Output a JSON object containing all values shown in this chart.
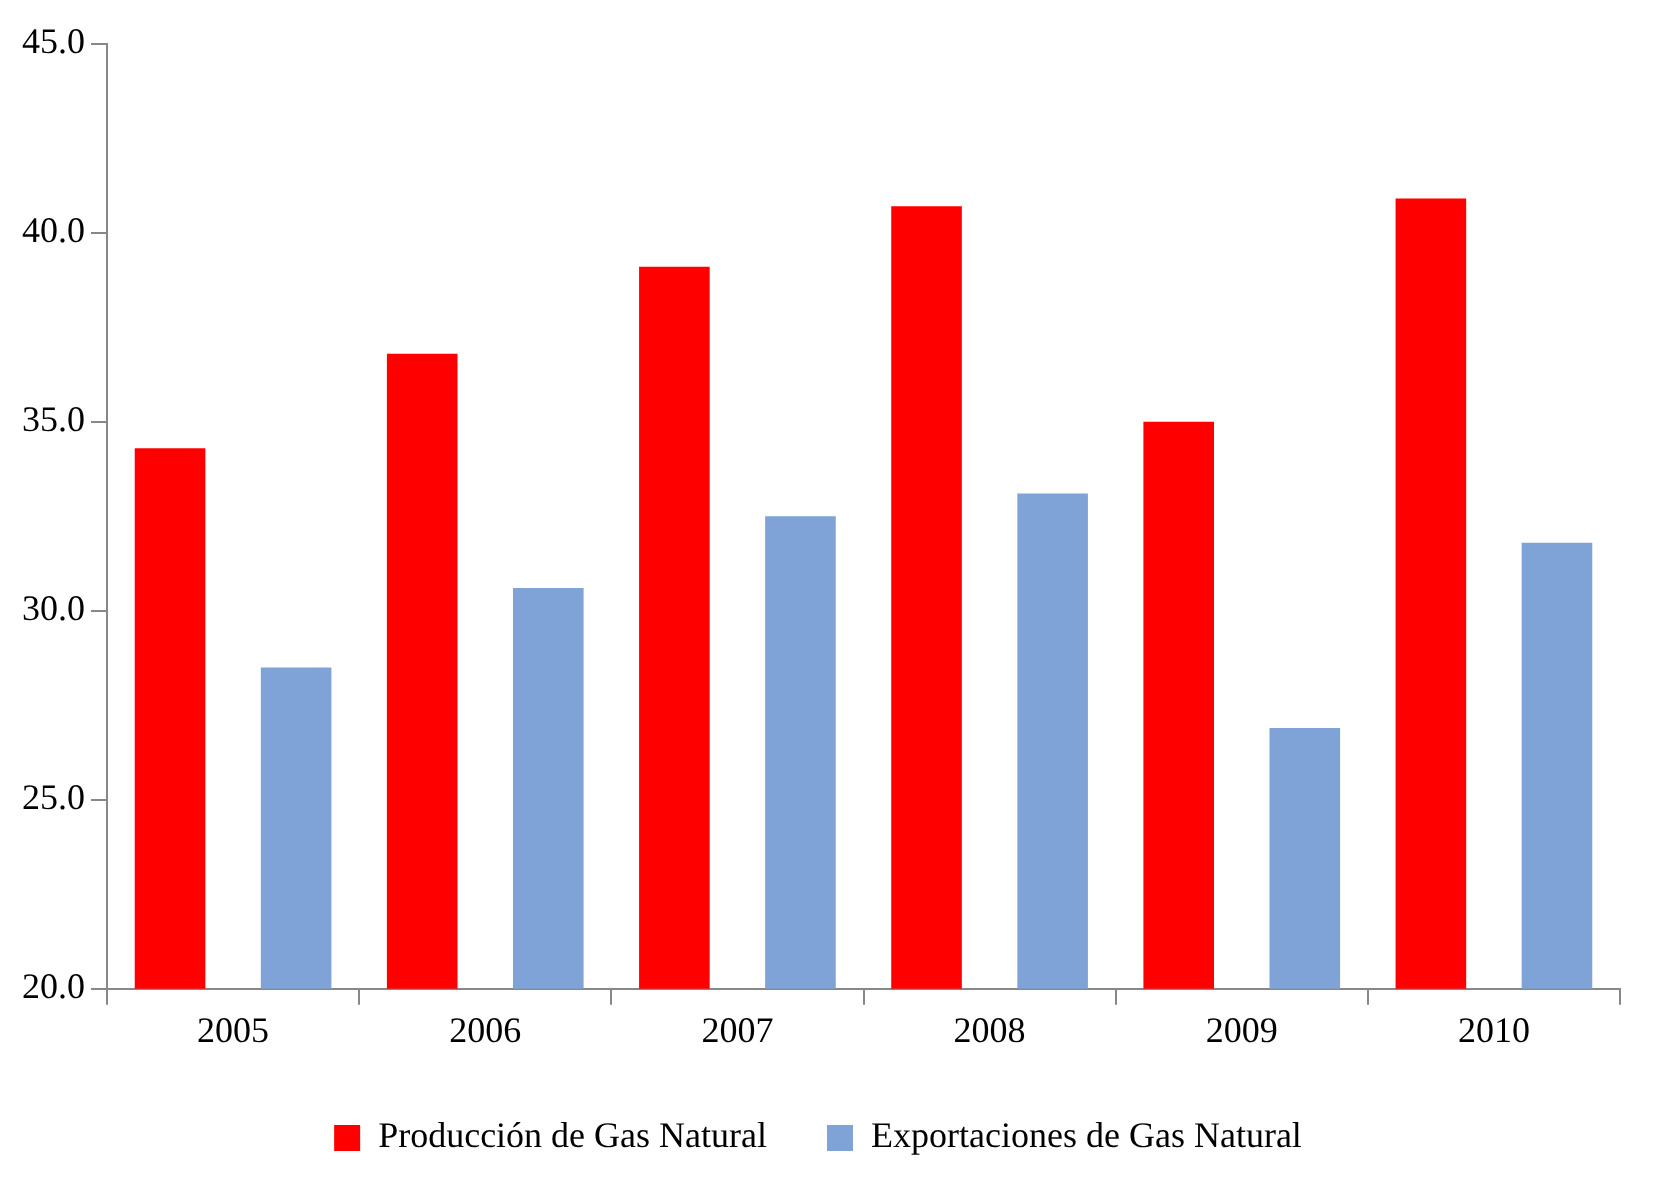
{
  "chart_data": {
    "type": "bar",
    "categories": [
      "2005",
      "2006",
      "2007",
      "2008",
      "2009",
      "2010"
    ],
    "series": [
      {
        "name": "Producción de Gas Natural",
        "color": "#ff0000",
        "values": [
          34.3,
          36.8,
          39.1,
          40.7,
          35.0,
          40.9
        ]
      },
      {
        "name": "Exportaciones de Gas Natural",
        "color": "#7fa3d6",
        "values": [
          28.5,
          30.6,
          32.5,
          33.1,
          26.9,
          31.8
        ]
      }
    ],
    "ylim": [
      20,
      45
    ],
    "yticks": [
      {
        "value": 20,
        "label": "20.0"
      },
      {
        "value": 25,
        "label": "25.0"
      },
      {
        "value": 30,
        "label": "30.0"
      },
      {
        "value": 35,
        "label": "35.0"
      },
      {
        "value": 40,
        "label": "40.0"
      },
      {
        "value": 45,
        "label": "45.0"
      }
    ],
    "grid": false,
    "legend": "bottom"
  }
}
